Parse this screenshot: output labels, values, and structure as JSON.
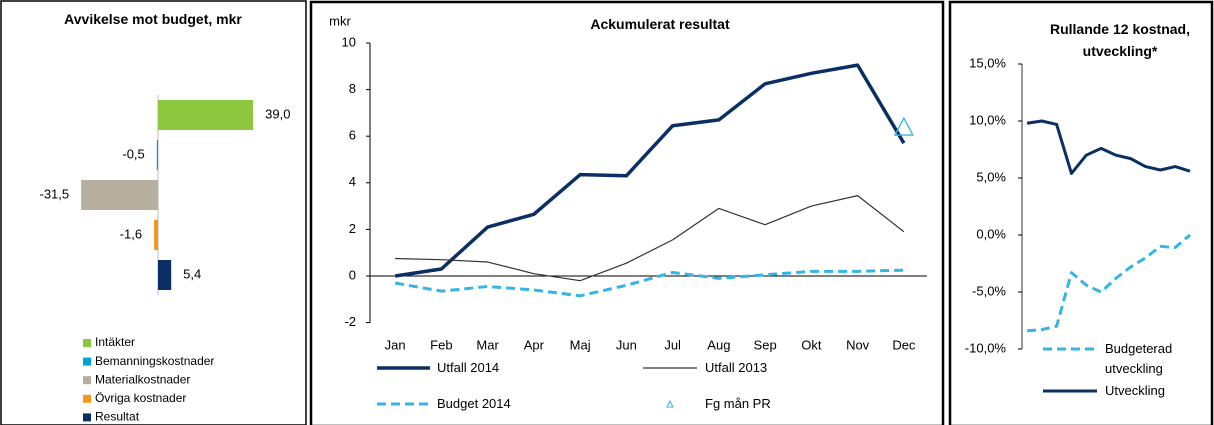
{
  "chart_data": [
    {
      "type": "hbar",
      "title": "Avvikelse mot budget, mkr",
      "categories": [
        "Intäkter",
        "Bemanningskostnader",
        "Materialkostnader",
        "Övriga kostnader",
        "Resultat"
      ],
      "values": [
        39.0,
        -0.5,
        -31.5,
        -1.6,
        5.4
      ],
      "value_labels": [
        "39,0",
        "-0,5",
        "-31,5",
        "-1,6",
        "5,4"
      ],
      "colors": [
        "#8dc63f",
        "#00a3d9",
        "#b6ae9f",
        "#f7941d",
        "#0b2f64"
      ],
      "legend": "bottom-left"
    },
    {
      "type": "line",
      "title": "Ackumulerat resultat",
      "y_label": "mkr",
      "categories": [
        "Jan",
        "Feb",
        "Mar",
        "Apr",
        "Maj",
        "Jun",
        "Jul",
        "Aug",
        "Sep",
        "Okt",
        "Nov",
        "Dec"
      ],
      "series": [
        {
          "name": "Utfall 2014",
          "color": "#0b2f64",
          "width": 3.5,
          "values": [
            0,
            0.3,
            2.1,
            2.65,
            4.35,
            4.3,
            6.45,
            6.7,
            8.25,
            8.7,
            9.05,
            5.7
          ]
        },
        {
          "name": "Utfall 2013",
          "color": "#333333",
          "width": 1.2,
          "values": [
            0.75,
            0.7,
            0.6,
            0.1,
            -0.2,
            0.55,
            1.55,
            2.9,
            2.2,
            3.0,
            3.45,
            1.9
          ]
        },
        {
          "name": "Budget 2014",
          "color": "#33b5e5",
          "width": 3,
          "dash": true,
          "values": [
            -0.3,
            -0.65,
            -0.45,
            -0.6,
            -0.85,
            -0.4,
            0.15,
            -0.1,
            0.05,
            0.2,
            0.2,
            0.25
          ]
        },
        {
          "name": "Fg mån PR",
          "color": "#33b5e5",
          "marker": "triangle",
          "values": [
            null,
            null,
            null,
            null,
            null,
            null,
            null,
            null,
            null,
            null,
            null,
            6.35
          ]
        }
      ],
      "ylim": [
        -2,
        10
      ],
      "yticks": [
        -2,
        0,
        2,
        4,
        6,
        8,
        10
      ]
    },
    {
      "type": "line",
      "title": "Rullande 12 kostnad, utveckling*",
      "categories": [
        null,
        null,
        null,
        null,
        null,
        null,
        null,
        null,
        null,
        null,
        null,
        null
      ],
      "series": [
        {
          "name": "Budgeterad utveckling",
          "color": "#33b5e5",
          "width": 3,
          "dash": true,
          "values": [
            -8.4,
            -8.3,
            -8.0,
            -3.3,
            -4.4,
            -5.0,
            -3.8,
            -2.8,
            -2.0,
            -1.0,
            -1.1,
            0.0
          ]
        },
        {
          "name": "Utveckling",
          "color": "#0b2f64",
          "width": 3,
          "values": [
            9.8,
            10.0,
            9.7,
            5.4,
            7.0,
            7.6,
            7.0,
            6.7,
            6.0,
            5.7,
            6.0,
            5.6
          ]
        }
      ],
      "ylim": [
        -10,
        15
      ],
      "yticks": [
        {
          "value": -10,
          "label": "-10,0%"
        },
        {
          "value": -5,
          "label": "-5,0%"
        },
        {
          "value": 0,
          "label": "0,0%"
        },
        {
          "value": 5,
          "label": "5,0%"
        },
        {
          "value": 10,
          "label": "10,0%"
        },
        {
          "value": 15,
          "label": "15,0%"
        }
      ]
    }
  ]
}
